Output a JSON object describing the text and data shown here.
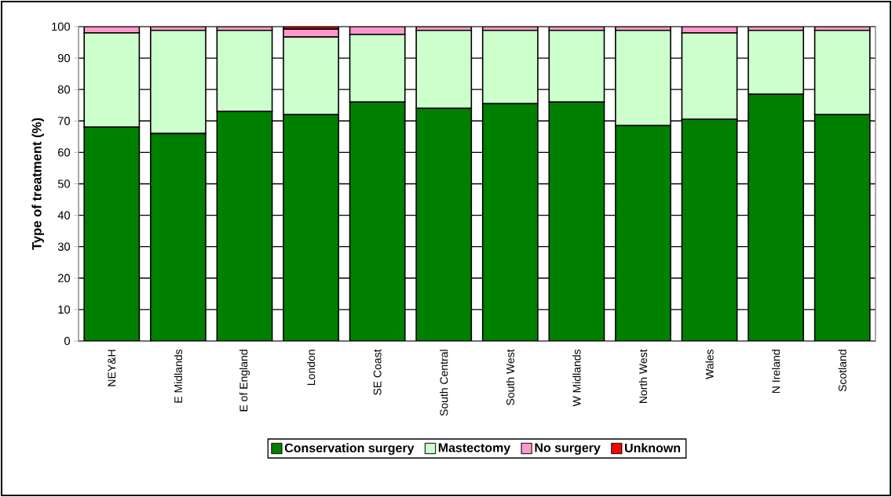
{
  "chart_data": {
    "type": "bar",
    "stacked": true,
    "ylabel": "Type of treatment (%)",
    "categories": [
      "NEY&H",
      "E Midlands",
      "E of England",
      "London",
      "SE Coast",
      "South Central",
      "South West",
      "W Midlands",
      "North West",
      "Wales",
      "N Ireland",
      "Scotland"
    ],
    "series": [
      {
        "name": "Conservation surgery",
        "color": "#008000",
        "values": [
          68,
          66,
          73,
          72,
          76,
          74,
          75.5,
          76,
          68.5,
          70.5,
          78.5,
          72
        ]
      },
      {
        "name": "Mastectomy",
        "color": "#ccffcc",
        "values": [
          30,
          32.8,
          25.8,
          24.7,
          21.5,
          24.8,
          23.3,
          22.8,
          30.3,
          27.5,
          20.3,
          26.8
        ]
      },
      {
        "name": "No surgery",
        "color": "#ff99cc",
        "values": [
          2,
          1.2,
          1.2,
          2.5,
          2.5,
          1.2,
          1.2,
          1.2,
          1.2,
          2,
          1.2,
          1.2
        ]
      },
      {
        "name": "Unknown",
        "color": "#ff0000",
        "values": [
          0,
          0,
          0,
          0.8,
          0,
          0,
          0,
          0,
          0,
          0,
          0,
          0
        ]
      }
    ],
    "ylim": [
      0,
      100
    ],
    "yticks": [
      0,
      10,
      20,
      30,
      40,
      50,
      60,
      70,
      80,
      90,
      100
    ],
    "grid": "y",
    "legend": "bottom"
  }
}
